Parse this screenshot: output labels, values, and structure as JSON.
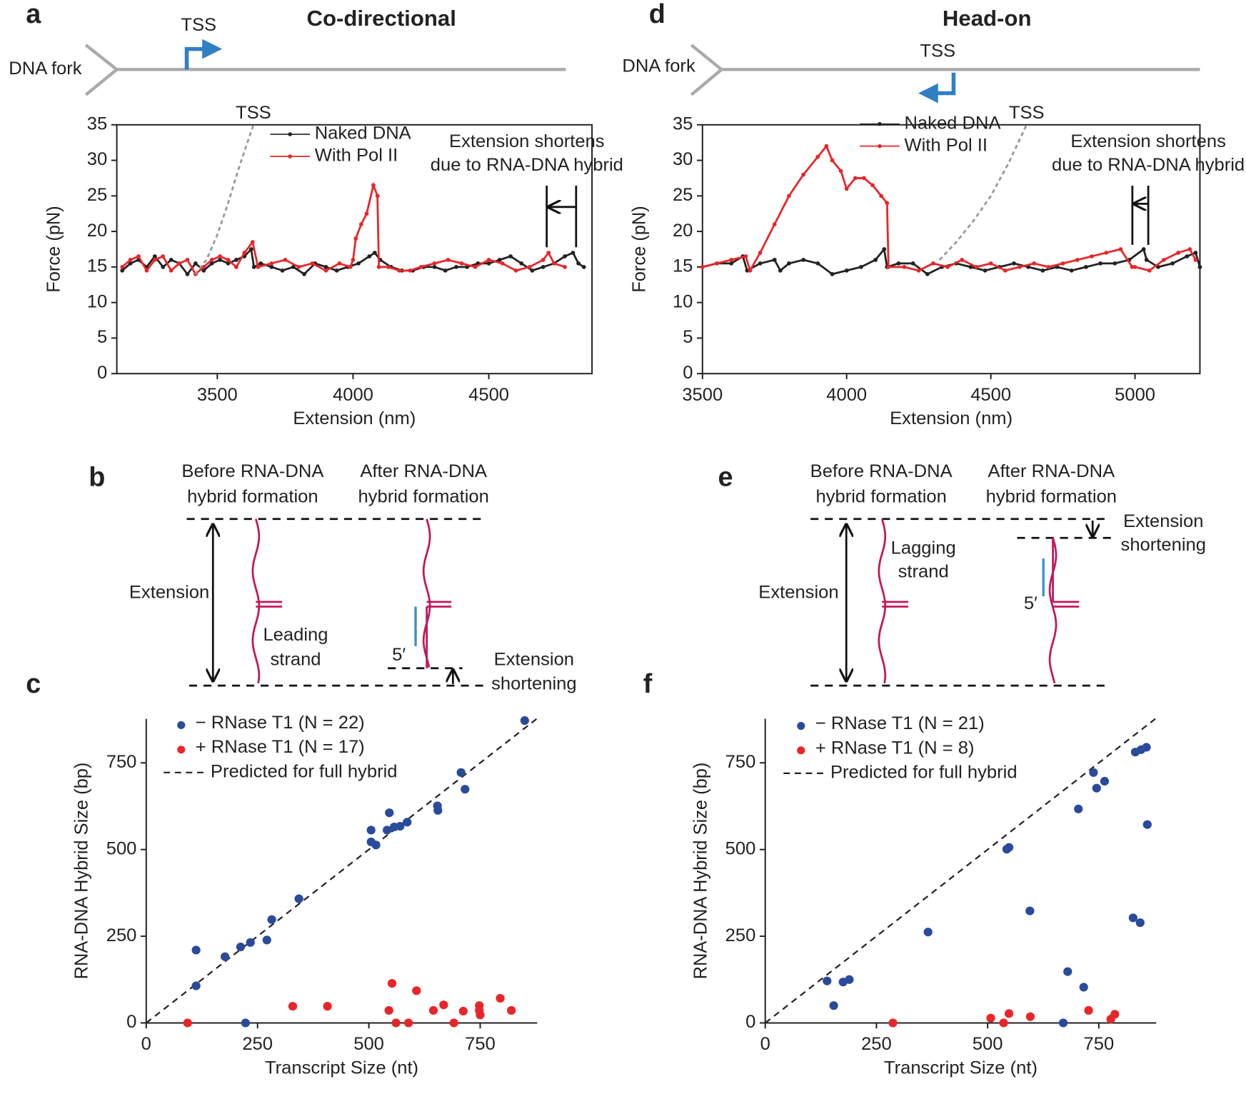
{
  "forks": [
    {
      "panel": "a",
      "title": "Co-directional",
      "fork_label": "DNA fork",
      "tss_label": "TSS"
    },
    {
      "panel": "d",
      "title": "Head-on",
      "fork_label": "DNA fork",
      "tss_label": "TSS"
    }
  ],
  "diagrams": [
    {
      "panel": "b",
      "before": [
        "Before RNA-DNA",
        "hybrid formation"
      ],
      "after": [
        "After RNA-DNA",
        "hybrid formation"
      ],
      "extension": "Extension",
      "strand": [
        "Leading",
        "strand"
      ],
      "five_prime": "5′",
      "shortening": [
        "Extension",
        "shortening"
      ]
    },
    {
      "panel": "e",
      "before": [
        "Before RNA-DNA",
        "hybrid formation"
      ],
      "after": [
        "After RNA-DNA",
        "hybrid formation"
      ],
      "extension": "Extension",
      "strand": [
        "Lagging",
        "strand"
      ],
      "five_prime": "5′",
      "shortening": [
        "Extension",
        "shortening"
      ]
    }
  ],
  "chart_data": [
    {
      "type": "line",
      "xlabel": "Extension (nm)",
      "ylabel": "Force (pN)",
      "xlim": [
        3130,
        4880
      ],
      "ylim": [
        0,
        35
      ],
      "xticks": [
        3500,
        4000,
        4500
      ],
      "yticks": [
        0,
        5,
        10,
        15,
        20,
        25,
        30,
        35
      ],
      "series": [
        {
          "name": "Naked DNA",
          "color": "#222222",
          "x": [
            3150,
            3180,
            3210,
            3240,
            3270,
            3300,
            3330,
            3360,
            3390,
            3420,
            3450,
            3480,
            3510,
            3540,
            3570,
            3600,
            3625,
            3635,
            3660,
            3700,
            3740,
            3780,
            3820,
            3860,
            3900,
            3940,
            3980,
            4020,
            4060,
            4080,
            4100,
            4140,
            4180,
            4220,
            4260,
            4300,
            4340,
            4380,
            4420,
            4460,
            4500,
            4540,
            4580,
            4620,
            4660,
            4700,
            4740,
            4780,
            4810,
            4830,
            4850
          ],
          "values": [
            14.5,
            15.5,
            16,
            15,
            16.5,
            15,
            16,
            15.5,
            14,
            15.5,
            14.5,
            15.5,
            16,
            15.5,
            16,
            16.5,
            17.5,
            15,
            15.5,
            15,
            14.5,
            15,
            14,
            15.5,
            15,
            14.5,
            15,
            15.5,
            16.5,
            17,
            16,
            15,
            14.5,
            14.5,
            15,
            15,
            14.5,
            15,
            15,
            15.5,
            15.5,
            16,
            16.5,
            15.5,
            14.5,
            15,
            15.5,
            16.5,
            17,
            15.5,
            15
          ]
        },
        {
          "name": "With Pol II",
          "color": "#e8262a",
          "x": [
            3150,
            3180,
            3210,
            3240,
            3270,
            3300,
            3330,
            3360,
            3390,
            3420,
            3450,
            3480,
            3510,
            3540,
            3570,
            3600,
            3630,
            3650,
            3700,
            3750,
            3800,
            3850,
            3900,
            3950,
            3990,
            4000,
            4010,
            4030,
            4050,
            4075,
            4090,
            4095,
            4130,
            4170,
            4210,
            4250,
            4300,
            4350,
            4400,
            4450,
            4500,
            4550,
            4600,
            4650,
            4700,
            4720,
            4740,
            4780
          ],
          "values": [
            15,
            16,
            16.5,
            14.5,
            16,
            16.5,
            14.5,
            15.5,
            16,
            14,
            15,
            16,
            16.5,
            16,
            15,
            17,
            18.5,
            15,
            15.5,
            16,
            15,
            15.5,
            14.5,
            15.5,
            15,
            16,
            19,
            21,
            22.5,
            26.5,
            25,
            15,
            15,
            14.5,
            14.5,
            15,
            15.5,
            16,
            15.5,
            15,
            16,
            15.5,
            14.5,
            15,
            16,
            17,
            15.5,
            15
          ]
        }
      ],
      "tss_curve": {
        "label": "TSS",
        "x": [
          3418,
          3460,
          3500,
          3540,
          3580,
          3633
        ],
        "y": [
          14,
          16,
          19.5,
          24,
          29,
          35
        ]
      },
      "annotation": [
        "Extension shortens",
        "due to RNA-DNA hybrid"
      ]
    },
    {
      "type": "line",
      "xlabel": "Extension (nm)",
      "ylabel": "Force (pN)",
      "xlim": [
        3500,
        5225
      ],
      "ylim": [
        0,
        35
      ],
      "xticks": [
        3500,
        4000,
        4500,
        5000
      ],
      "yticks": [
        0,
        5,
        10,
        15,
        20,
        25,
        30,
        35
      ],
      "series": [
        {
          "name": "Naked DNA",
          "color": "#222222",
          "x": [
            3500,
            3550,
            3600,
            3640,
            3655,
            3700,
            3750,
            3770,
            3800,
            3850,
            3900,
            3950,
            4000,
            4050,
            4100,
            4130,
            4140,
            4180,
            4230,
            4280,
            4330,
            4380,
            4430,
            4480,
            4530,
            4580,
            4630,
            4680,
            4730,
            4780,
            4830,
            4880,
            4930,
            4980,
            5030,
            5040,
            5080,
            5130,
            5180,
            5210,
            5225
          ],
          "values": [
            15,
            15.5,
            15.5,
            16.5,
            14.5,
            15.5,
            16,
            14.5,
            15.5,
            16,
            15.5,
            14,
            14.5,
            15,
            16,
            17.5,
            15,
            15.5,
            15.5,
            14,
            15,
            15.5,
            15,
            14.5,
            15,
            15.5,
            15,
            14.5,
            15,
            14.5,
            15,
            15.5,
            15.5,
            16,
            17.5,
            16,
            15,
            15.5,
            16.5,
            17,
            15
          ]
        },
        {
          "name": "With Pol II",
          "color": "#e8262a",
          "x": [
            3500,
            3550,
            3600,
            3650,
            3665,
            3700,
            3750,
            3800,
            3850,
            3900,
            3930,
            3950,
            3980,
            4000,
            4030,
            4060,
            4090,
            4120,
            4140,
            4145,
            4200,
            4250,
            4300,
            4350,
            4400,
            4450,
            4500,
            4550,
            4600,
            4650,
            4700,
            4750,
            4800,
            4850,
            4900,
            4950,
            4990,
            5000,
            5050,
            5100,
            5150,
            5190,
            5210
          ],
          "values": [
            15,
            15.5,
            16,
            16.5,
            14.5,
            17,
            21,
            25,
            28,
            30.5,
            32,
            30,
            28.5,
            26,
            27.5,
            27.5,
            26.5,
            25,
            24,
            15,
            15,
            14.5,
            15.5,
            15,
            16,
            15,
            15.5,
            14.5,
            15,
            15.5,
            15,
            15.5,
            16,
            16.5,
            17,
            17.5,
            15,
            15,
            14.5,
            16,
            17,
            17.5,
            16
          ]
        }
      ],
      "tss_curve": {
        "label": "TSS",
        "x": [
          4322,
          4380,
          4440,
          4500,
          4560,
          4624
        ],
        "y": [
          16,
          18.5,
          21.5,
          25,
          29.5,
          35
        ]
      },
      "annotation": [
        "Extension shortens",
        "due to RNA-DNA hybrid"
      ]
    },
    {
      "type": "scatter",
      "panel": "c",
      "xlabel": "Transcript Size (nt)",
      "ylabel": "RNA-DNA Hybrid Size (bp)",
      "xlim": [
        0,
        878
      ],
      "ylim": [
        0,
        877
      ],
      "xticks": [
        0,
        250,
        500,
        750
      ],
      "yticks": [
        0,
        250,
        500,
        750
      ],
      "series": [
        {
          "name": "− RNase T1 (N = 22)",
          "color": "#2a4b9b",
          "x": [
            112,
            112,
            177,
            212,
            234,
            271,
            282,
            343,
            223,
            505,
            505,
            516,
            546,
            541,
            557,
            570,
            586,
            654,
            655,
            707,
            716,
            850
          ],
          "values": [
            210,
            107,
            191,
            219,
            232,
            239,
            298,
            358,
            0,
            556,
            522,
            513,
            606,
            556,
            565,
            567,
            579,
            626,
            613,
            722,
            674,
            872
          ]
        },
        {
          "name": "+ RNase T1 (N = 17)",
          "color": "#e8262a",
          "x": [
            93,
            329,
            407,
            552,
            607,
            545,
            561,
            589,
            645,
            668,
            691,
            712,
            748,
            750,
            748,
            795,
            820
          ],
          "values": [
            0,
            48,
            48,
            114,
            93,
            36,
            0,
            0,
            36,
            52,
            0,
            34,
            50,
            23,
            36,
            71,
            36
          ]
        }
      ],
      "reference_line": {
        "name": "Predicted for full hybrid",
        "slope": 1
      }
    },
    {
      "type": "scatter",
      "panel": "f",
      "xlabel": "Transcript Size (nt)",
      "ylabel": "RNA-DNA Hybrid Size (bp)",
      "xlim": [
        0,
        879
      ],
      "ylim": [
        0,
        877
      ],
      "xticks": [
        0,
        250,
        500,
        750
      ],
      "yticks": [
        0,
        250,
        500,
        750
      ],
      "series": [
        {
          "name": "− RNase T1 (N = 21)",
          "color": "#2a4b9b",
          "x": [
            139,
            154,
            175,
            189,
            366,
            543,
            548,
            595,
            680,
            670,
            716,
            704,
            738,
            745,
            763,
            827,
            843,
            859,
            832,
            845,
            857
          ],
          "values": [
            121,
            50,
            118,
            125,
            262,
            501,
            506,
            323,
            148,
            0,
            103,
            617,
            722,
            677,
            697,
            303,
            289,
            572,
            781,
            788,
            795
          ]
        },
        {
          "name": "+ RNase T1 (N = 8)",
          "color": "#e8262a",
          "x": [
            287,
            507,
            536,
            548,
            596,
            727,
            777,
            786
          ],
          "values": [
            0,
            14,
            0,
            27,
            18,
            36,
            11,
            25
          ]
        }
      ],
      "reference_line": {
        "name": "Predicted for full hybrid",
        "slope": 1
      }
    }
  ]
}
